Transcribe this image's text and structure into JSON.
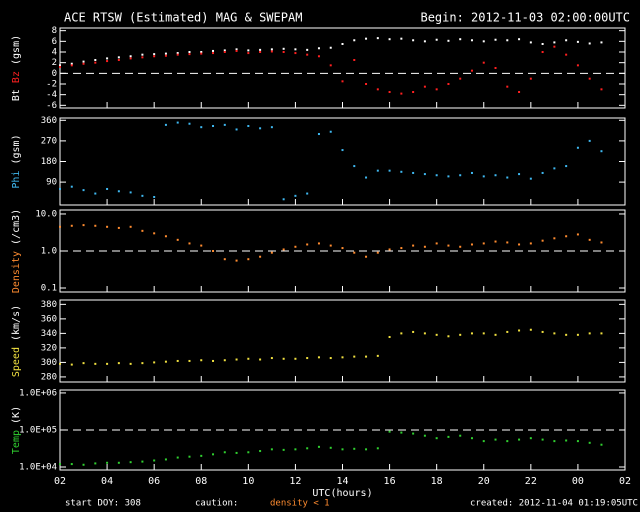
{
  "header": {
    "title": "ACE RTSW (Estimated) MAG & SWEPAM",
    "begin": "Begin: 2012-11-03 02:00:00UTC"
  },
  "footer": {
    "start": "start DOY: 308",
    "caution": "caution:",
    "caution_note": "density < 1",
    "created": "created: 2012-11-04 01:19:05UTC"
  },
  "chart_data": [
    {
      "type": "scatter",
      "yunit": "(gsm)",
      "ylim": [
        -6.5,
        8.5
      ],
      "yticks": [
        -6,
        -4,
        -2,
        0,
        2,
        4,
        6,
        8
      ],
      "ref_line": 0,
      "x": [
        0,
        0.5,
        1,
        1.5,
        2,
        2.5,
        3,
        3.5,
        4,
        4.5,
        5,
        5.5,
        6,
        6.5,
        7,
        7.5,
        8,
        8.5,
        9,
        9.5,
        10,
        10.5,
        11,
        11.5,
        12,
        12.5,
        13,
        13.5,
        14,
        14.5,
        15,
        15.5,
        16,
        16.5,
        17,
        17.5,
        18,
        18.5,
        19,
        19.5,
        20,
        20.5,
        21,
        21.5,
        22,
        22.5,
        23
      ],
      "series": [
        {
          "name": "Bt",
          "color": "#ffffff",
          "values": [
            1.5,
            1.8,
            2.2,
            2.5,
            2.8,
            3.0,
            3.2,
            3.5,
            3.6,
            3.7,
            3.8,
            4.0,
            4.0,
            4.2,
            4.3,
            4.5,
            4.3,
            4.4,
            4.5,
            4.6,
            4.5,
            4.4,
            4.7,
            4.8,
            5.5,
            6.2,
            6.5,
            6.6,
            6.4,
            6.5,
            6.2,
            6.0,
            6.3,
            6.1,
            6.4,
            6.2,
            6.0,
            6.3,
            6.2,
            6.4,
            5.8,
            5.5,
            5.8,
            6.2,
            5.9,
            5.6,
            5.8
          ]
        },
        {
          "name": "Bz",
          "color": "#ff2020",
          "values": [
            1.2,
            1.5,
            1.8,
            2.0,
            2.3,
            2.5,
            2.8,
            3.0,
            3.2,
            3.3,
            3.5,
            3.6,
            3.7,
            3.8,
            4.0,
            4.2,
            3.8,
            4.0,
            4.1,
            4.0,
            3.8,
            3.5,
            3.2,
            1.5,
            -1.5,
            2.5,
            -2.0,
            -3.0,
            -3.5,
            -3.8,
            -3.5,
            -2.5,
            -3.0,
            -2.0,
            -1.0,
            0.5,
            2.0,
            1.0,
            -2.5,
            -3.5,
            -1.0,
            4.0,
            5.0,
            3.5,
            1.5,
            -1.0,
            -3.0
          ]
        }
      ]
    },
    {
      "type": "scatter",
      "yunit": "(gsm)",
      "ylim": [
        -10,
        370
      ],
      "yticks": [
        90,
        180,
        270,
        360
      ],
      "x": [
        0,
        0.5,
        1,
        1.5,
        2,
        2.5,
        3,
        3.5,
        4,
        4.5,
        5,
        5.5,
        6,
        6.5,
        7,
        7.5,
        8,
        8.5,
        9,
        9.5,
        10,
        10.5,
        11,
        11.5,
        12,
        12.5,
        13,
        13.5,
        14,
        14.5,
        15,
        15.5,
        16,
        16.5,
        17,
        17.5,
        18,
        18.5,
        19,
        19.5,
        20,
        20.5,
        21,
        21.5,
        22,
        22.5,
        23
      ],
      "series": [
        {
          "name": "Phi",
          "color": "#3fb8f0",
          "values": [
            60,
            70,
            55,
            40,
            60,
            50,
            45,
            30,
            25,
            340,
            350,
            345,
            330,
            335,
            340,
            320,
            335,
            325,
            330,
            15,
            30,
            40,
            300,
            310,
            230,
            160,
            110,
            140,
            140,
            135,
            130,
            125,
            120,
            115,
            120,
            130,
            115,
            120,
            110,
            125,
            105,
            130,
            150,
            160,
            240,
            270,
            225
          ]
        }
      ]
    },
    {
      "type": "scatter",
      "log": true,
      "yunit": "(/cm3)",
      "ylim": [
        0.078,
        12.8
      ],
      "yticks": [
        0.1,
        {
          "value": 1,
          "label": "1.0"
        },
        {
          "value": 10,
          "label": "10.0"
        }
      ],
      "ref_line": 1,
      "x": [
        0,
        0.5,
        1,
        1.5,
        2,
        2.5,
        3,
        3.5,
        4,
        4.5,
        5,
        5.5,
        6,
        6.5,
        7,
        7.5,
        8,
        8.5,
        9,
        9.5,
        10,
        10.5,
        11,
        11.5,
        12,
        12.5,
        13,
        13.5,
        14,
        14.5,
        15,
        15.5,
        16,
        16.5,
        17,
        17.5,
        18,
        18.5,
        19,
        19.5,
        20,
        20.5,
        21,
        21.5,
        22,
        22.5,
        23
      ],
      "series": [
        {
          "name": "Density",
          "color": "#ff8c30",
          "values": [
            4.5,
            4.8,
            5.0,
            4.8,
            4.5,
            4.2,
            4.5,
            3.5,
            3.0,
            2.5,
            2.0,
            1.6,
            1.4,
            1.0,
            0.6,
            0.55,
            0.6,
            0.7,
            0.9,
            1.1,
            1.3,
            1.5,
            1.6,
            1.4,
            1.2,
            0.9,
            0.7,
            0.9,
            1.1,
            1.2,
            1.4,
            1.3,
            1.6,
            1.4,
            1.3,
            1.5,
            1.6,
            1.8,
            1.7,
            1.5,
            1.6,
            1.9,
            2.2,
            2.5,
            2.8,
            2.0,
            1.7
          ]
        }
      ]
    },
    {
      "type": "scatter",
      "yunit": "(km/s)",
      "ylim": [
        273,
        386
      ],
      "yticks": [
        280,
        300,
        320,
        340,
        360,
        380
      ],
      "x": [
        0,
        0.5,
        1,
        1.5,
        2,
        2.5,
        3,
        3.5,
        4,
        4.5,
        5,
        5.5,
        6,
        6.5,
        7,
        7.5,
        8,
        8.5,
        9,
        9.5,
        10,
        10.5,
        11,
        11.5,
        12,
        12.5,
        13,
        13.5,
        14,
        14.5,
        15,
        15.5,
        16,
        16.5,
        17,
        17.5,
        18,
        18.5,
        19,
        19.5,
        20,
        20.5,
        21,
        21.5,
        22,
        22.5,
        23
      ],
      "series": [
        {
          "name": "Speed",
          "color": "#f0e040",
          "values": [
            298,
            297,
            299,
            298,
            298,
            299,
            298,
            299,
            300,
            301,
            302,
            302,
            303,
            302,
            303,
            304,
            305,
            304,
            306,
            305,
            305,
            306,
            307,
            306,
            307,
            308,
            308,
            309,
            335,
            340,
            342,
            340,
            338,
            336,
            338,
            340,
            340,
            338,
            342,
            344,
            345,
            342,
            340,
            338,
            338,
            340,
            340
          ]
        }
      ]
    },
    {
      "type": "scatter",
      "log": true,
      "yunit": "(K)",
      "ylim": [
        8300,
        1200000
      ],
      "yticks": [
        {
          "value": 10000,
          "label": "1.0E+04"
        },
        {
          "value": 100000,
          "label": "1.0E+05"
        },
        {
          "value": 1000000,
          "label": "1.0E+06"
        }
      ],
      "ref_line": 100000,
      "xlim": [
        0,
        24
      ],
      "xticks": [
        {
          "value": 0,
          "label": "02"
        },
        {
          "value": 2,
          "label": "04"
        },
        {
          "value": 4,
          "label": "06"
        },
        {
          "value": 6,
          "label": "08"
        },
        {
          "value": 8,
          "label": "10"
        },
        {
          "value": 10,
          "label": "12"
        },
        {
          "value": 12,
          "label": "14"
        },
        {
          "value": 14,
          "label": "16"
        },
        {
          "value": 16,
          "label": "18"
        },
        {
          "value": 18,
          "label": "20"
        },
        {
          "value": 20,
          "label": "22"
        },
        {
          "value": 22,
          "label": "00"
        },
        {
          "value": 24,
          "label": "02"
        }
      ],
      "xlabel": "UTC(hours)",
      "x": [
        0,
        0.5,
        1,
        1.5,
        2,
        2.5,
        3,
        3.5,
        4,
        4.5,
        5,
        5.5,
        6,
        6.5,
        7,
        7.5,
        8,
        8.5,
        9,
        9.5,
        10,
        10.5,
        11,
        11.5,
        12,
        12.5,
        13,
        13.5,
        14,
        14.5,
        15,
        15.5,
        16,
        16.5,
        17,
        17.5,
        18,
        18.5,
        19,
        19.5,
        20,
        20.5,
        21,
        21.5,
        22,
        22.5,
        23
      ],
      "series": [
        {
          "name": "Temp",
          "color": "#30d030",
          "values": [
            12000,
            12000,
            11500,
            12500,
            13000,
            13000,
            13500,
            14000,
            15000,
            16000,
            18000,
            19000,
            20000,
            22000,
            25000,
            24000,
            25000,
            27000,
            30000,
            29000,
            30000,
            32000,
            35000,
            33000,
            30000,
            31000,
            30000,
            32000,
            90000,
            85000,
            80000,
            70000,
            60000,
            65000,
            70000,
            60000,
            50000,
            55000,
            50000,
            55000,
            60000,
            55000,
            50000,
            52000,
            50000,
            45000,
            40000
          ]
        }
      ]
    }
  ]
}
